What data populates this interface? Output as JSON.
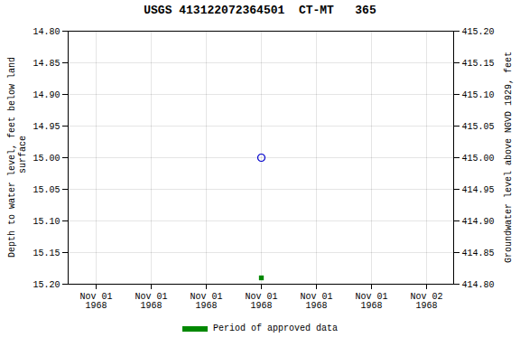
{
  "chart_data": {
    "type": "scatter",
    "title": "USGS 413122072364501  CT-MT   365",
    "ylabel": "Depth to water level, feet below land\n surface",
    "y2label": "Groundwater level above NGVD 1929, feet",
    "categories": [
      "Nov 01\n1968",
      "Nov 01\n1968",
      "Nov 01\n1968",
      "Nov 01\n1968",
      "Nov 01\n1968",
      "Nov 01\n1968",
      "Nov 02\n1968"
    ],
    "series": [
      {
        "color": "#0000cc",
        "marker": "open_circle",
        "axis": "y",
        "values": [
          null,
          null,
          null,
          15.0,
          null,
          null,
          null
        ]
      },
      {
        "color": "#008800",
        "marker": "square",
        "axis": "y",
        "values": [
          null,
          null,
          null,
          15.19,
          null,
          null,
          null
        ]
      }
    ],
    "ylim": [
      15.2,
      14.8
    ],
    "yticks": [
      {
        "value": 14.8,
        "label": "14.80"
      },
      14.85,
      {
        "value": 14.9,
        "label": "14.90"
      },
      14.95,
      {
        "value": 15.0,
        "label": "15.00"
      },
      15.05,
      {
        "value": 15.1,
        "label": "15.10"
      },
      15.15,
      {
        "value": 15.2,
        "label": "15.20"
      }
    ],
    "y2lim": [
      414.8,
      415.2
    ],
    "y2ticks": [
      {
        "value": 415.2,
        "label": "415.20"
      },
      415.15,
      {
        "value": 415.1,
        "label": "415.10"
      },
      415.05,
      {
        "value": 415.0,
        "label": "415.00"
      },
      414.95,
      {
        "value": 414.9,
        "label": "414.90"
      },
      414.85,
      {
        "value": 414.8,
        "label": "414.80"
      }
    ],
    "grid": true,
    "legend": "lower center",
    "legend_entries": [
      {
        "name": "Period of approved data",
        "color": "#008800"
      }
    ]
  }
}
